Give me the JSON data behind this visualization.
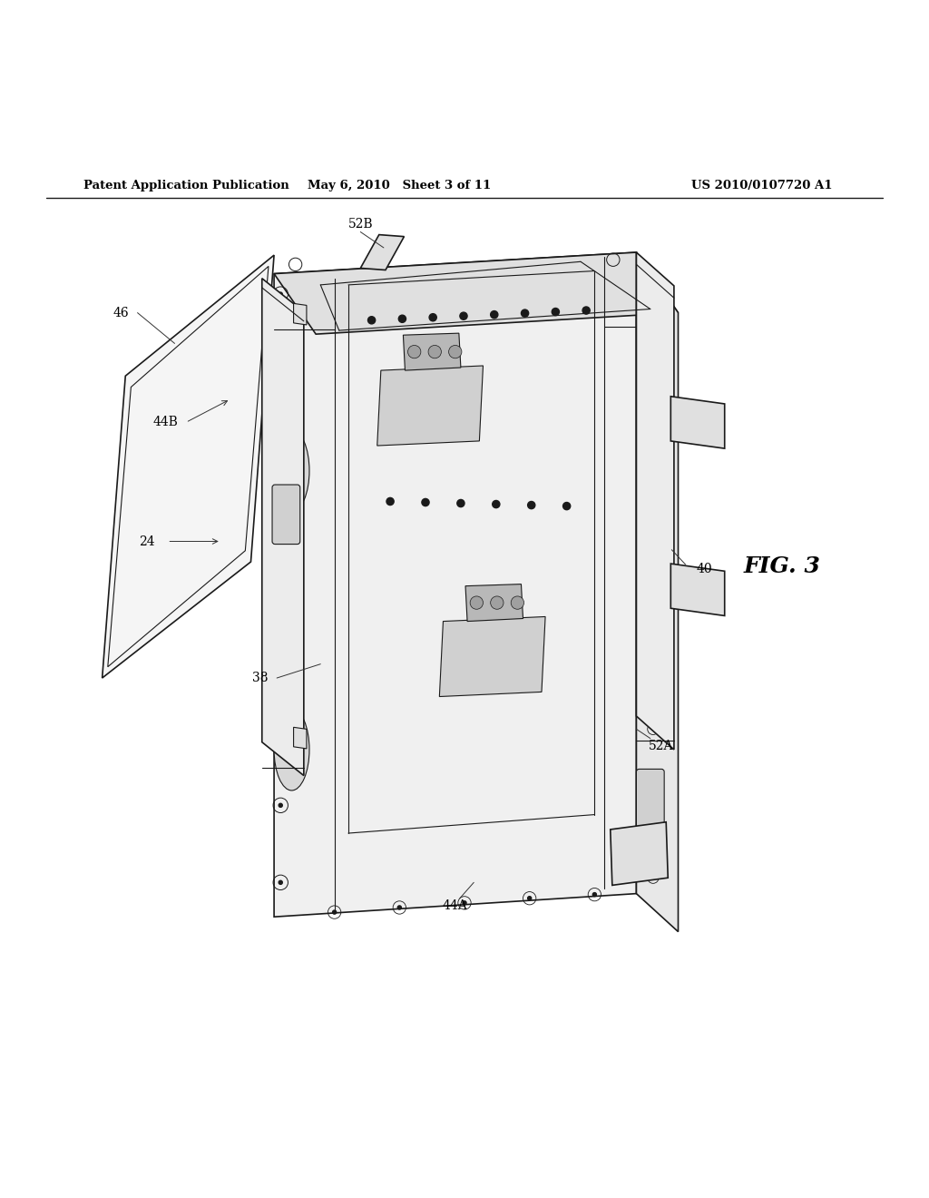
{
  "background_color": "#ffffff",
  "header_left": "Patent Application Publication",
  "header_mid": "May 6, 2010   Sheet 3 of 11",
  "header_right": "US 2010/0107720 A1",
  "fig_label": "FIG. 3"
}
